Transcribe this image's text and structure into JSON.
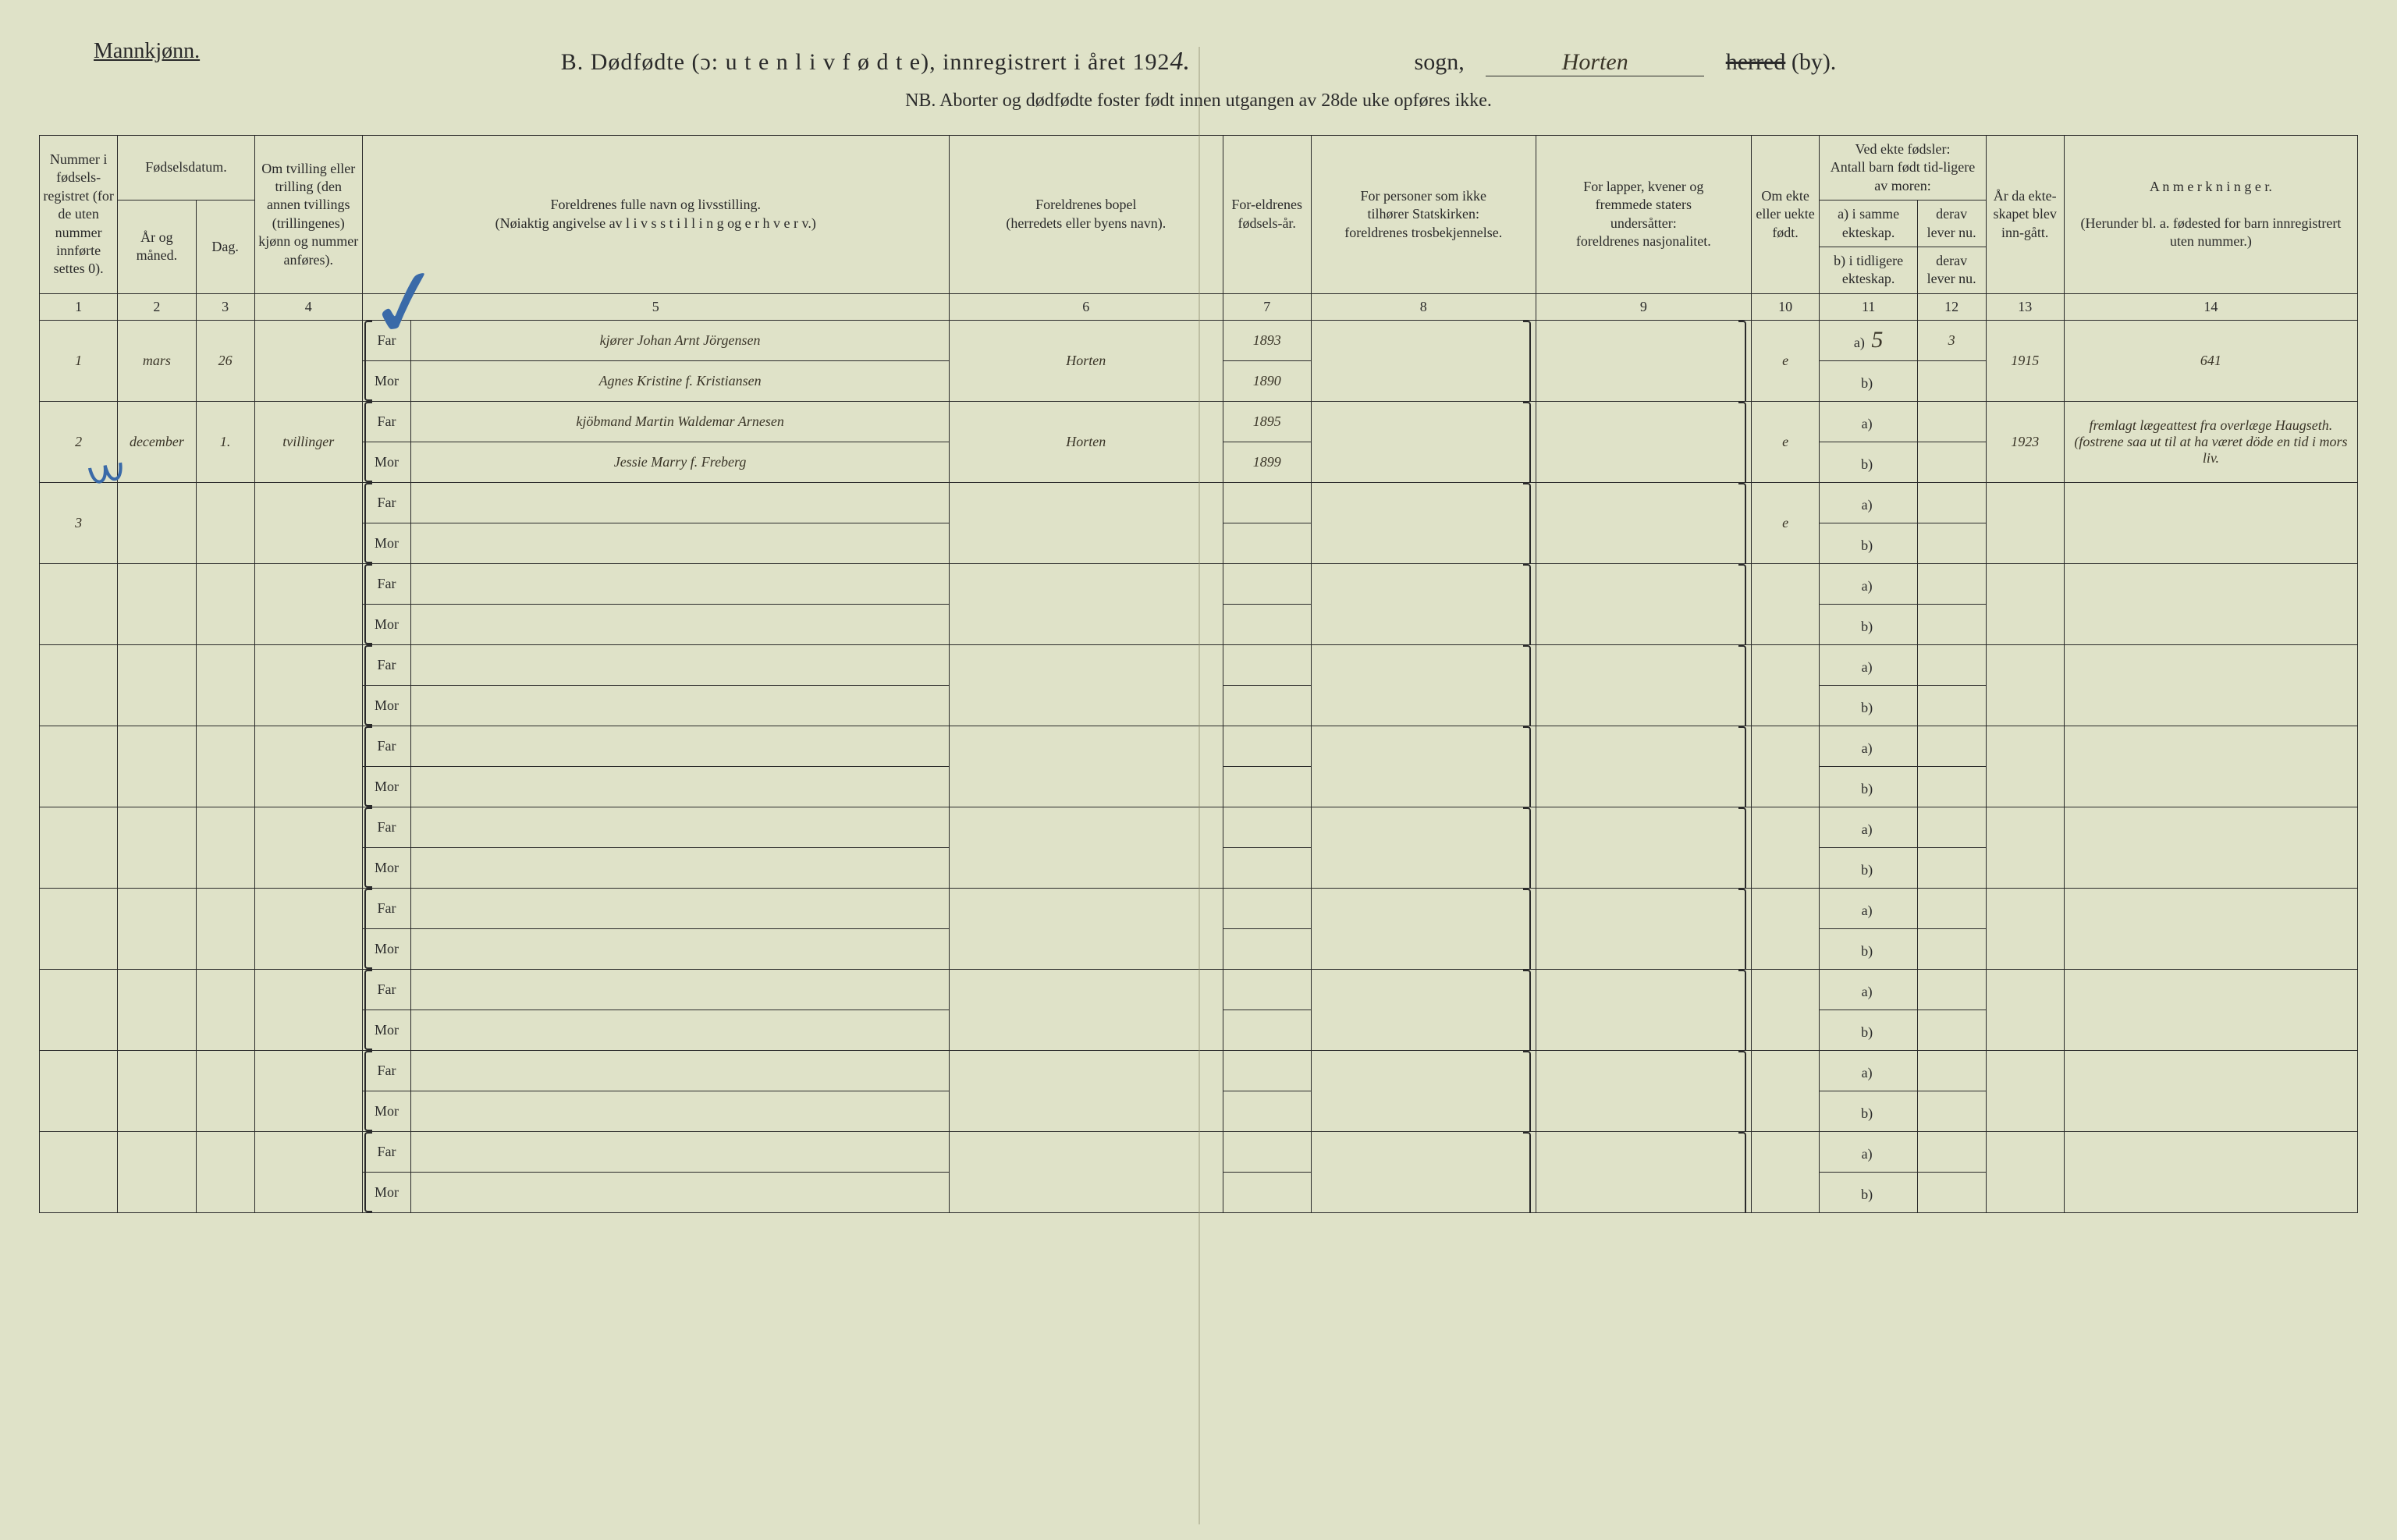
{
  "header": {
    "gender": "Mannkjønn.",
    "title_prefix": "B.  Dødfødte (ɔ:  u t e n  l i v  f ø d t e),  innregistrert i året 192",
    "year_suffix": "4.",
    "sogn_label": "sogn,",
    "sogn_value": "Horten",
    "by_strike": "herred",
    "by_suffix": " (by).",
    "nb": "NB.  Aborter og dødfødte foster født innen utgangen av 28de uke opføres ikke."
  },
  "columns": {
    "c1": "Nummer i fødsels-registret (for de uten nummer innførte settes 0).",
    "c2_top": "Fødselsdatum.",
    "c2": "År og måned.",
    "c3": "Dag.",
    "c4": "Om tvilling eller trilling (den annen tvillings (trillingenes) kjønn og nummer anføres).",
    "c5": "Foreldrenes fulle navn og livsstilling.\n(Nøiaktig angivelse av  l i v s s t i l l i n g  og  e r h v e r v.)",
    "c6": "Foreldrenes bopel\n(herredets eller byens navn).",
    "c7": "For-eldrenes fødsels-år.",
    "c8": "For personer som ikke\ntilhører Statskirken:\nforeldrenes trosbekjennelse.",
    "c9": "For lapper, kvener og\nfremmede staters\nundersåtter:\nforeldrenes nasjonalitet.",
    "c10": "Om ekte eller uekte født.",
    "c11_top": "Ved ekte fødsler:\nAntall barn født tid-ligere av moren:",
    "c11a": "a) i samme ekteskap.",
    "c11b": "b) i tidligere ekteskap.",
    "c12a": "derav lever nu.",
    "c12b": "derav lever nu.",
    "c13": "År da ekte-skapet blev inn-gått.",
    "c14": "A n m e r k n i n g e r.\n\n(Herunder bl. a. fødested for barn innregistrert uten nummer.)",
    "far_label": "Far",
    "mor_label": "Mor",
    "ab_a": "a)",
    "ab_b": "b)"
  },
  "colnums": [
    "1",
    "2",
    "3",
    "4",
    "5",
    "6",
    "7",
    "8",
    "9",
    "10",
    "11",
    "12",
    "13",
    "14"
  ],
  "entries": [
    {
      "num": "1",
      "month": "mars",
      "day": "26",
      "twin": "",
      "far": "kjører Johan Arnt Jörgensen",
      "mor": "Agnes Kristine f. Kristiansen",
      "bopel": "Horten",
      "far_year": "1893",
      "mor_year": "1890",
      "c8": "",
      "c9": "",
      "ekte": "e",
      "a_same": "5",
      "a_lever": "3",
      "b_tidl": "",
      "b_lever": "",
      "year_married": "1915",
      "note": "641"
    },
    {
      "num": "2",
      "month": "december",
      "day": "1.",
      "twin": "tvillinger",
      "far": "kjöbmand Martin Waldemar Arnesen",
      "mor": "Jessie Marry f. Freberg",
      "bopel": "Horten",
      "far_year": "1895",
      "mor_year": "1899",
      "c8": "",
      "c9": "",
      "ekte": "e",
      "a_same": "",
      "a_lever": "",
      "b_tidl": "",
      "b_lever": "",
      "year_married": "1923",
      "note": "fremlagt lægeattest fra overlæge Haugseth. (fostrene saa ut til at ha været döde en tid i mors liv."
    },
    {
      "num": "3",
      "month": "",
      "day": "",
      "twin": "",
      "far": "",
      "mor": "",
      "bopel": "",
      "far_year": "",
      "mor_year": "",
      "c8": "",
      "c9": "",
      "ekte": "e",
      "a_same": "",
      "a_lever": "",
      "b_tidl": "",
      "b_lever": "",
      "year_married": "",
      "note": ""
    },
    {
      "num": "",
      "month": "",
      "day": "",
      "twin": "",
      "far": "",
      "mor": "",
      "bopel": "",
      "far_year": "",
      "mor_year": "",
      "c8": "",
      "c9": "",
      "ekte": "",
      "a_same": "",
      "a_lever": "",
      "b_tidl": "",
      "b_lever": "",
      "year_married": "",
      "note": ""
    },
    {
      "num": "",
      "month": "",
      "day": "",
      "twin": "",
      "far": "",
      "mor": "",
      "bopel": "",
      "far_year": "",
      "mor_year": "",
      "c8": "",
      "c9": "",
      "ekte": "",
      "a_same": "",
      "a_lever": "",
      "b_tidl": "",
      "b_lever": "",
      "year_married": "",
      "note": ""
    },
    {
      "num": "",
      "month": "",
      "day": "",
      "twin": "",
      "far": "",
      "mor": "",
      "bopel": "",
      "far_year": "",
      "mor_year": "",
      "c8": "",
      "c9": "",
      "ekte": "",
      "a_same": "",
      "a_lever": "",
      "b_tidl": "",
      "b_lever": "",
      "year_married": "",
      "note": ""
    },
    {
      "num": "",
      "month": "",
      "day": "",
      "twin": "",
      "far": "",
      "mor": "",
      "bopel": "",
      "far_year": "",
      "mor_year": "",
      "c8": "",
      "c9": "",
      "ekte": "",
      "a_same": "",
      "a_lever": "",
      "b_tidl": "",
      "b_lever": "",
      "year_married": "",
      "note": ""
    },
    {
      "num": "",
      "month": "",
      "day": "",
      "twin": "",
      "far": "",
      "mor": "",
      "bopel": "",
      "far_year": "",
      "mor_year": "",
      "c8": "",
      "c9": "",
      "ekte": "",
      "a_same": "",
      "a_lever": "",
      "b_tidl": "",
      "b_lever": "",
      "year_married": "",
      "note": ""
    },
    {
      "num": "",
      "month": "",
      "day": "",
      "twin": "",
      "far": "",
      "mor": "",
      "bopel": "",
      "far_year": "",
      "mor_year": "",
      "c8": "",
      "c9": "",
      "ekte": "",
      "a_same": "",
      "a_lever": "",
      "b_tidl": "",
      "b_lever": "",
      "year_married": "",
      "note": ""
    },
    {
      "num": "",
      "month": "",
      "day": "",
      "twin": "",
      "far": "",
      "mor": "",
      "bopel": "",
      "far_year": "",
      "mor_year": "",
      "c8": "",
      "c9": "",
      "ekte": "",
      "a_same": "",
      "a_lever": "",
      "b_tidl": "",
      "b_lever": "",
      "year_married": "",
      "note": ""
    },
    {
      "num": "",
      "month": "",
      "day": "",
      "twin": "",
      "far": "",
      "mor": "",
      "bopel": "",
      "far_year": "",
      "mor_year": "",
      "c8": "",
      "c9": "",
      "ekte": "",
      "a_same": "",
      "a_lever": "",
      "b_tidl": "",
      "b_lever": "",
      "year_married": "",
      "note": ""
    }
  ],
  "styling": {
    "background_color": "#dfe2c8",
    "ink_color": "#2a2a2a",
    "handwriting_color": "#3a3528",
    "blue_pencil_color": "#3a6aa8",
    "header_fontsize": 30,
    "cell_fontsize": 18,
    "hand_fontsize": 30
  }
}
